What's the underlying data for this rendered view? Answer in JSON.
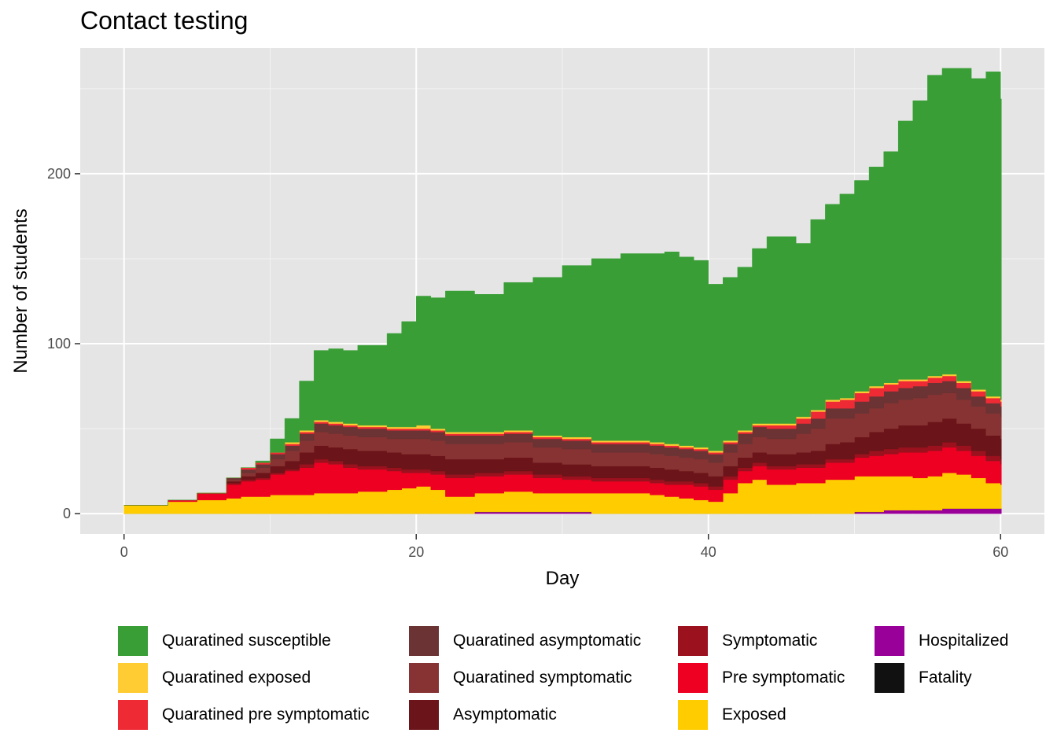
{
  "chart_data": {
    "type": "area",
    "title": "Contact testing",
    "xlabel": "Day",
    "ylabel": "Number of students",
    "xlim": [
      -3,
      63
    ],
    "ylim": [
      -12,
      274
    ],
    "x_ticks": [
      0,
      20,
      40,
      60
    ],
    "y_ticks": [
      0,
      100,
      200
    ],
    "grid": true,
    "stacked": true,
    "legend_position": "bottom",
    "x": [
      0,
      1,
      3,
      5,
      7,
      8,
      9,
      10,
      11,
      12,
      13,
      14,
      15,
      16,
      18,
      19,
      20,
      21,
      22,
      24,
      26,
      28,
      30,
      32,
      34,
      36,
      37,
      38,
      39,
      40,
      41,
      42,
      43,
      44,
      46,
      47,
      48,
      49,
      50,
      51,
      52,
      53,
      54,
      55,
      56,
      57,
      58,
      59,
      60
    ],
    "series": [
      {
        "name": "Hospitalized",
        "color": "#990099",
        "values": [
          0,
          0,
          0,
          0,
          0,
          0,
          0,
          0,
          0,
          0,
          0,
          0,
          0,
          0,
          0,
          0,
          0,
          0,
          0,
          1,
          1,
          1,
          1,
          0,
          0,
          0,
          0,
          0,
          0,
          0,
          0,
          0,
          0,
          0,
          0,
          0,
          0,
          0,
          1,
          1,
          2,
          2,
          2,
          2,
          3,
          3,
          3,
          3,
          3
        ]
      },
      {
        "name": "Fatality",
        "color": "#111111",
        "values": [
          0,
          0,
          0,
          0,
          0,
          0,
          0,
          0,
          0,
          0,
          0,
          0,
          0,
          0,
          0,
          0,
          0,
          0,
          0,
          0,
          0,
          0,
          0,
          0,
          0,
          0,
          0,
          0,
          0,
          0,
          0,
          0,
          0,
          0,
          0,
          0,
          0,
          0,
          0,
          0,
          0,
          0,
          0,
          0,
          0,
          0,
          0,
          0,
          0
        ]
      },
      {
        "name": "Exposed",
        "color": "#FFCC00",
        "values": [
          5,
          5,
          7,
          8,
          9,
          10,
          10,
          11,
          11,
          11,
          12,
          12,
          12,
          13,
          14,
          15,
          16,
          14,
          10,
          11,
          12,
          11,
          11,
          12,
          12,
          11,
          10,
          9,
          8,
          7,
          12,
          18,
          20,
          17,
          18,
          18,
          20,
          20,
          21,
          21,
          20,
          20,
          19,
          20,
          21,
          20,
          18,
          15,
          14
        ]
      },
      {
        "name": "Pre symptomatic",
        "color": "#EE0022",
        "values": [
          0,
          0,
          1,
          4,
          8,
          9,
          10,
          12,
          14,
          16,
          18,
          17,
          15,
          13,
          11,
          9,
          8,
          9,
          11,
          10,
          10,
          9,
          8,
          7,
          7,
          7,
          7,
          8,
          8,
          7,
          8,
          7,
          8,
          9,
          9,
          9,
          10,
          10,
          11,
          12,
          13,
          14,
          15,
          15,
          15,
          14,
          13,
          13,
          12
        ]
      },
      {
        "name": "Symptomatic",
        "color": "#9B111E",
        "values": [
          0,
          0,
          0,
          0,
          1,
          1,
          1,
          1,
          1,
          2,
          2,
          2,
          2,
          2,
          2,
          2,
          2,
          2,
          2,
          2,
          2,
          2,
          2,
          2,
          2,
          2,
          2,
          2,
          2,
          2,
          2,
          2,
          2,
          2,
          2,
          2,
          2,
          2,
          2,
          3,
          3,
          3,
          3,
          3,
          3,
          3,
          3,
          3,
          3
        ]
      },
      {
        "name": "Asymptomatic",
        "color": "#6B1419",
        "values": [
          0,
          0,
          0,
          0,
          1,
          2,
          3,
          4,
          5,
          7,
          8,
          8,
          9,
          9,
          9,
          9,
          9,
          9,
          9,
          8,
          8,
          7,
          7,
          7,
          7,
          7,
          7,
          6,
          6,
          6,
          6,
          6,
          6,
          7,
          7,
          8,
          9,
          10,
          10,
          11,
          12,
          13,
          13,
          14,
          14,
          13,
          13,
          12,
          12
        ]
      },
      {
        "name": "Quarantined symptomatic",
        "color": "#883333",
        "values": [
          0,
          0,
          0,
          0,
          1,
          2,
          3,
          4,
          6,
          7,
          8,
          8,
          8,
          8,
          8,
          9,
          9,
          9,
          9,
          9,
          9,
          9,
          9,
          8,
          8,
          8,
          8,
          8,
          8,
          8,
          8,
          8,
          9,
          9,
          11,
          13,
          15,
          14,
          14,
          14,
          15,
          15,
          16,
          16,
          15,
          14,
          13,
          13,
          13
        ]
      },
      {
        "name": "Quarantined asymptomatic",
        "color": "#6B3333",
        "values": [
          0,
          0,
          0,
          0,
          1,
          2,
          2,
          3,
          3,
          4,
          5,
          5,
          5,
          5,
          5,
          5,
          5,
          5,
          5,
          5,
          5,
          5,
          5,
          5,
          5,
          5,
          5,
          5,
          5,
          5,
          5,
          6,
          6,
          6,
          6,
          6,
          6,
          6,
          7,
          7,
          7,
          7,
          7,
          7,
          7,
          7,
          6,
          6,
          6
        ]
      },
      {
        "name": "Quarantined pre symptomatic",
        "color": "#EE2A35",
        "values": [
          0,
          0,
          0,
          0,
          0,
          1,
          1,
          1,
          1,
          1,
          1,
          1,
          1,
          1,
          1,
          1,
          1,
          1,
          1,
          1,
          1,
          1,
          1,
          1,
          1,
          1,
          1,
          1,
          1,
          1,
          1,
          1,
          1,
          2,
          3,
          4,
          4,
          5,
          5,
          5,
          4,
          4,
          3,
          3,
          3,
          3,
          3,
          3,
          3
        ]
      },
      {
        "name": "Quarantined exposed",
        "color": "#FFCC33",
        "values": [
          0,
          0,
          0,
          0,
          0,
          0,
          0,
          0,
          1,
          1,
          1,
          1,
          1,
          1,
          1,
          1,
          2,
          1,
          1,
          1,
          1,
          1,
          1,
          1,
          1,
          1,
          1,
          1,
          1,
          1,
          1,
          1,
          1,
          1,
          1,
          1,
          1,
          1,
          1,
          1,
          1,
          1,
          1,
          1,
          1,
          1,
          1,
          1,
          1
        ]
      },
      {
        "name": "Quaratined susceptible",
        "color": "#3A9E37",
        "values": [
          0,
          0,
          0,
          0,
          0,
          0,
          1,
          8,
          14,
          29,
          41,
          43,
          43,
          47,
          55,
          62,
          76,
          77,
          83,
          81,
          87,
          93,
          101,
          107,
          110,
          111,
          113,
          111,
          110,
          98,
          96,
          96,
          103,
          110,
          102,
          112,
          115,
          120,
          124,
          129,
          136,
          152,
          164,
          177,
          180,
          184,
          183,
          191,
          177
        ]
      }
    ]
  },
  "legend": {
    "items": [
      {
        "label": "Quaratined susceptible",
        "color": "#3A9E37"
      },
      {
        "label": "Quaratined exposed",
        "color": "#FFCC33"
      },
      {
        "label": "Quaratined pre symptomatic",
        "color": "#EE2A35"
      },
      {
        "label": "Quaratined asymptomatic",
        "color": "#6B3333"
      },
      {
        "label": "Quaratined symptomatic",
        "color": "#883333"
      },
      {
        "label": "Asymptomatic",
        "color": "#6B1419"
      },
      {
        "label": "Symptomatic",
        "color": "#9B111E"
      },
      {
        "label": "Pre symptomatic",
        "color": "#EE0022"
      },
      {
        "label": "Exposed",
        "color": "#FFCC00"
      },
      {
        "label": "Hospitalized",
        "color": "#990099"
      },
      {
        "label": "Fatality",
        "color": "#111111"
      }
    ]
  }
}
